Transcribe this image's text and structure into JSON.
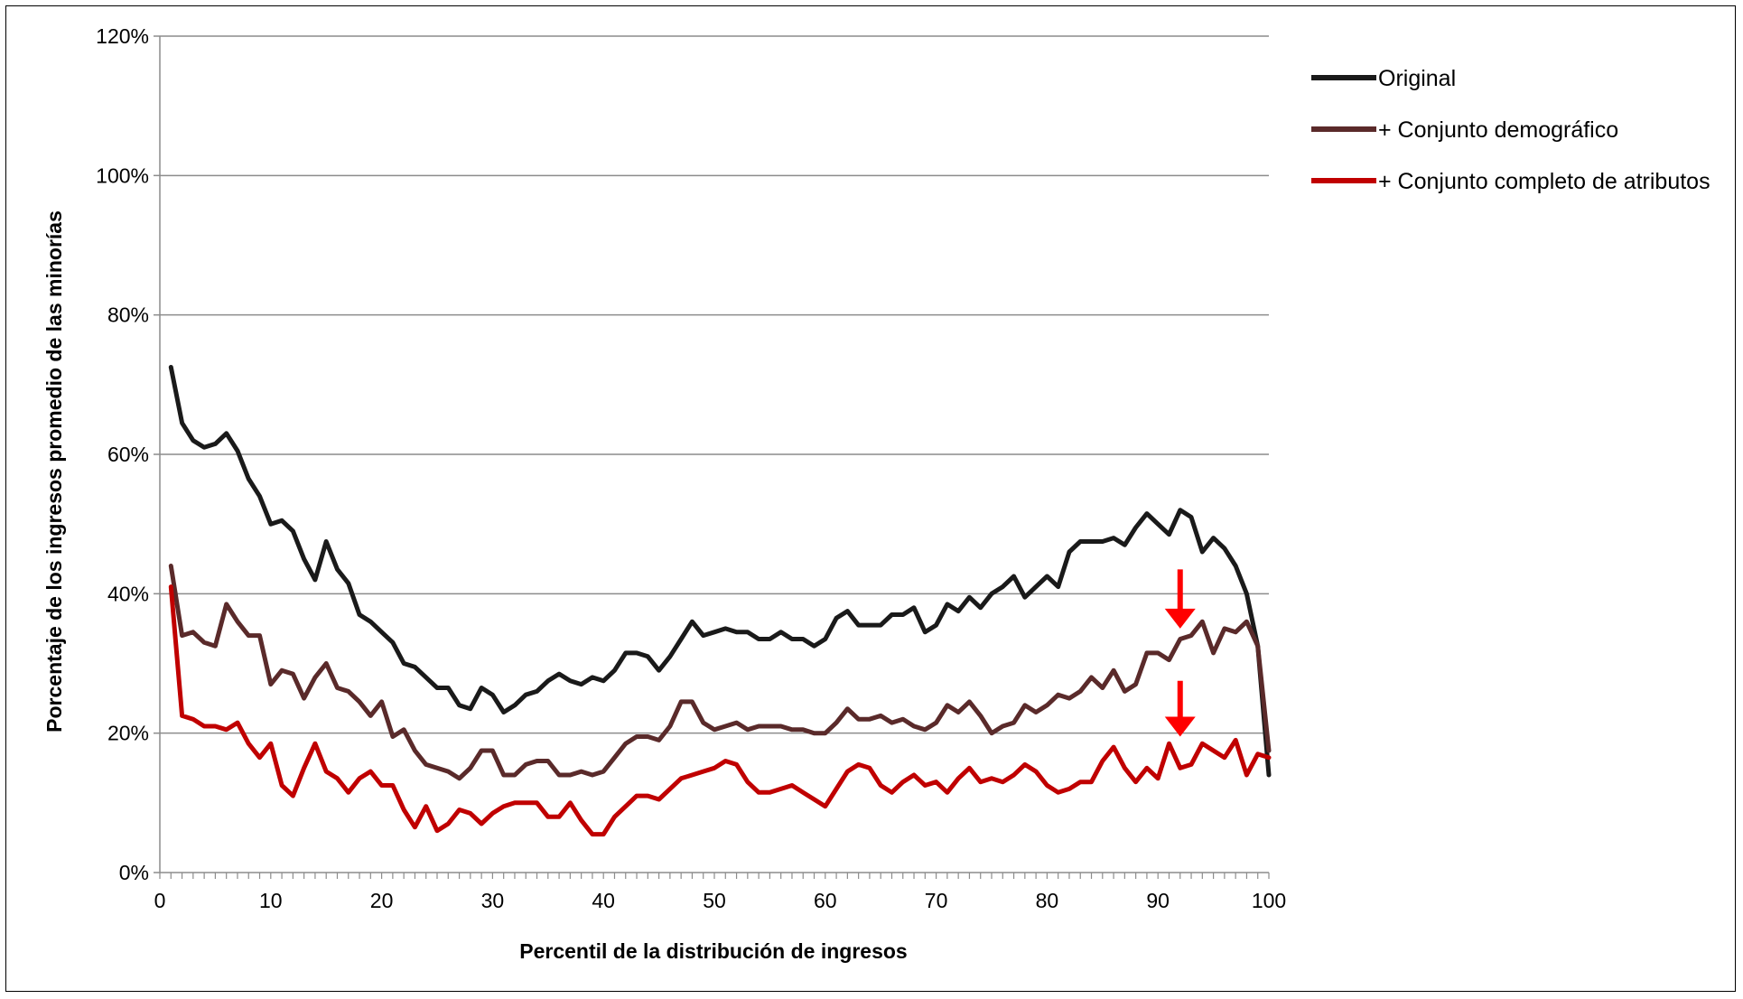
{
  "chart_data": {
    "type": "line",
    "title": "",
    "xlabel": "Percentil de la distribución de ingresos",
    "ylabel": "Porcentaje de los ingresos promedio de las minorías",
    "xlim": [
      0,
      100
    ],
    "ylim": [
      0,
      120
    ],
    "x_ticks": [
      0,
      10,
      20,
      30,
      40,
      50,
      60,
      70,
      80,
      90,
      100
    ],
    "y_ticks": [
      0,
      20,
      40,
      60,
      80,
      100,
      120
    ],
    "y_tick_labels": [
      "0%",
      "20%",
      "40%",
      "60%",
      "80%",
      "100%",
      "120%"
    ],
    "grid": "horizontal",
    "legend_position": "top-right",
    "x": [
      1,
      2,
      3,
      4,
      5,
      6,
      7,
      8,
      9,
      10,
      11,
      12,
      13,
      14,
      15,
      16,
      17,
      18,
      19,
      20,
      21,
      22,
      23,
      24,
      25,
      26,
      27,
      28,
      29,
      30,
      31,
      32,
      33,
      34,
      35,
      36,
      37,
      38,
      39,
      40,
      41,
      42,
      43,
      44,
      45,
      46,
      47,
      48,
      49,
      50,
      51,
      52,
      53,
      54,
      55,
      56,
      57,
      58,
      59,
      60,
      61,
      62,
      63,
      64,
      65,
      66,
      67,
      68,
      69,
      70,
      71,
      72,
      73,
      74,
      75,
      76,
      77,
      78,
      79,
      80,
      81,
      82,
      83,
      84,
      85,
      86,
      87,
      88,
      89,
      90,
      91,
      92,
      93,
      94,
      95,
      96,
      97,
      98,
      99,
      100
    ],
    "series": [
      {
        "name": "Original",
        "color": "#1a1a1a",
        "values": [
          72.5,
          64.5,
          62,
          61,
          61.5,
          63,
          60.5,
          56.5,
          54,
          50,
          50.5,
          49,
          45,
          42,
          47.5,
          43.5,
          41.5,
          37,
          36,
          34.5,
          33,
          30,
          29.5,
          28,
          26.5,
          26.5,
          24,
          23.5,
          26.5,
          25.5,
          23,
          24,
          25.5,
          26,
          27.5,
          28.5,
          27.5,
          27,
          28,
          27.5,
          29,
          31.5,
          31.5,
          31,
          29,
          31,
          33.5,
          36,
          34,
          34.5,
          35,
          34.5,
          34.5,
          33.5,
          33.5,
          34.5,
          33.5,
          33.5,
          32.5,
          33.5,
          36.5,
          37.5,
          35.5,
          35.5,
          35.5,
          37,
          37,
          38,
          34.5,
          35.5,
          38.5,
          37.5,
          39.5,
          38,
          40,
          41,
          42.5,
          39.5,
          41,
          42.5,
          41,
          46,
          47.5,
          47.5,
          47.5,
          48,
          47,
          49.5,
          51.5,
          50,
          48.5,
          52,
          51,
          46,
          48,
          46.5,
          44,
          40,
          32.5,
          14
        ]
      },
      {
        "name": "+ Conjunto demográfico",
        "color": "#5a2a2a",
        "values": [
          44,
          34,
          34.5,
          33,
          32.5,
          38.5,
          36,
          34,
          34,
          27,
          29,
          28.5,
          25,
          28,
          30,
          26.5,
          26,
          24.5,
          22.5,
          24.5,
          19.5,
          20.5,
          17.5,
          15.5,
          15,
          14.5,
          13.5,
          15,
          17.5,
          17.5,
          14,
          14,
          15.5,
          16,
          16,
          14,
          14,
          14.5,
          14,
          14.5,
          16.5,
          18.5,
          19.5,
          19.5,
          19,
          21,
          24.5,
          24.5,
          21.5,
          20.5,
          21,
          21.5,
          20.5,
          21,
          21,
          21,
          20.5,
          20.5,
          20,
          20,
          21.5,
          23.5,
          22,
          22,
          22.5,
          21.5,
          22,
          21,
          20.5,
          21.5,
          24,
          23,
          24.5,
          22.5,
          20,
          21,
          21.5,
          24,
          23,
          24,
          25.5,
          25,
          26,
          28,
          26.5,
          29,
          26,
          27,
          31.5,
          31.5,
          30.5,
          33.5,
          34,
          36,
          31.5,
          35,
          34.5,
          36,
          32.5,
          17.5
        ]
      },
      {
        "name": "+ Conjunto completo de atributos",
        "color": "#c00000",
        "values": [
          41,
          22.5,
          22,
          21,
          21,
          20.5,
          21.5,
          18.5,
          16.5,
          18.5,
          12.5,
          11,
          15,
          18.5,
          14.5,
          13.5,
          11.5,
          13.5,
          14.5,
          12.5,
          12.5,
          9,
          6.5,
          9.5,
          6,
          7,
          9,
          8.5,
          7,
          8.5,
          9.5,
          10,
          10,
          10,
          8,
          8,
          10,
          7.5,
          5.5,
          5.5,
          8,
          9.5,
          11,
          11,
          10.5,
          12,
          13.5,
          14,
          14.5,
          15,
          16,
          15.5,
          13,
          11.5,
          11.5,
          12,
          12.5,
          11.5,
          10.5,
          9.5,
          12,
          14.5,
          15.5,
          15,
          12.5,
          11.5,
          13,
          14,
          12.5,
          13,
          11.5,
          13.5,
          15,
          13,
          13.5,
          13,
          14,
          15.5,
          14.5,
          12.5,
          11.5,
          12,
          13,
          13,
          16,
          18,
          15,
          13,
          15,
          13.5,
          18.5,
          15,
          15.5,
          18.5,
          17.5,
          16.5,
          19,
          14,
          17,
          16.5
        ]
      }
    ],
    "annotations": [
      {
        "type": "arrow-down",
        "color": "#ff0000",
        "x": 92,
        "y_tip": 35,
        "y_tail": 43.5
      },
      {
        "type": "arrow-down",
        "color": "#ff0000",
        "x": 92,
        "y_tip": 19.5,
        "y_tail": 27.5
      }
    ]
  }
}
